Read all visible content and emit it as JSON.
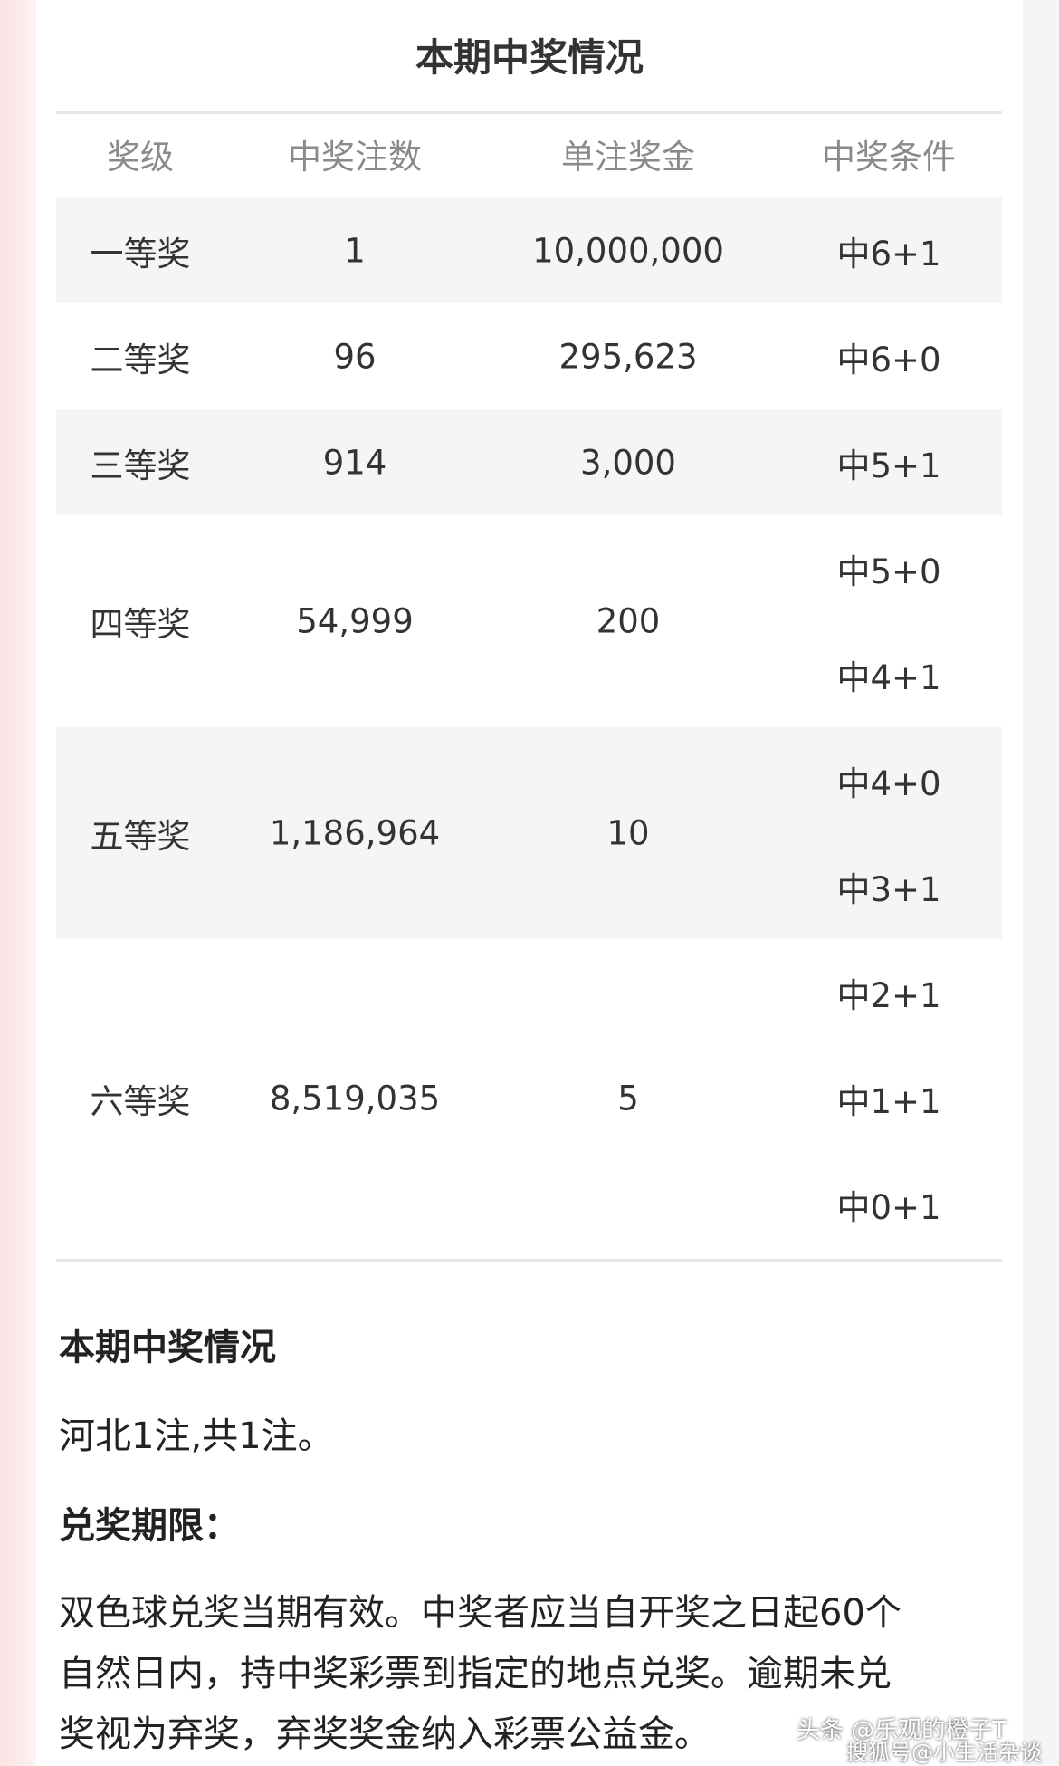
{
  "card": {
    "title": "本期中奖情况",
    "table": {
      "headers": [
        "奖级",
        "中奖注数",
        "单注奖金",
        "中奖条件"
      ],
      "rows": [
        {
          "level": "一等奖",
          "count": "1",
          "prize": "10,000,000",
          "conditions": [
            "中6+1"
          ]
        },
        {
          "level": "二等奖",
          "count": "96",
          "prize": "295,623",
          "conditions": [
            "中6+0"
          ]
        },
        {
          "level": "三等奖",
          "count": "914",
          "prize": "3,000",
          "conditions": [
            "中5+1"
          ]
        },
        {
          "level": "四等奖",
          "count": "54,999",
          "prize": "200",
          "conditions": [
            "中5+0",
            "中4+1"
          ]
        },
        {
          "level": "五等奖",
          "count": "1,186,964",
          "prize": "10",
          "conditions": [
            "中4+0",
            "中3+1"
          ]
        },
        {
          "level": "六等奖",
          "count": "8,519,035",
          "prize": "5",
          "conditions": [
            "中2+1",
            "中1+1",
            "中0+1"
          ]
        }
      ]
    },
    "section_title": "本期中奖情况",
    "section_text": "河北1注,共1注。",
    "deadline_title": "兑奖期限：",
    "deadline_lines": [
      "双色球兑奖当期有效。中奖者应当自开奖之日起60个",
      "自然日内，持中奖彩票到指定的地点兑奖。逾期未兑",
      "奖视为弃奖，弃奖奖金纳入彩票公益金。"
    ]
  },
  "watermarks": [
    "头条 @乐观的橙子T",
    "搜狐号@小生活杂谈"
  ]
}
